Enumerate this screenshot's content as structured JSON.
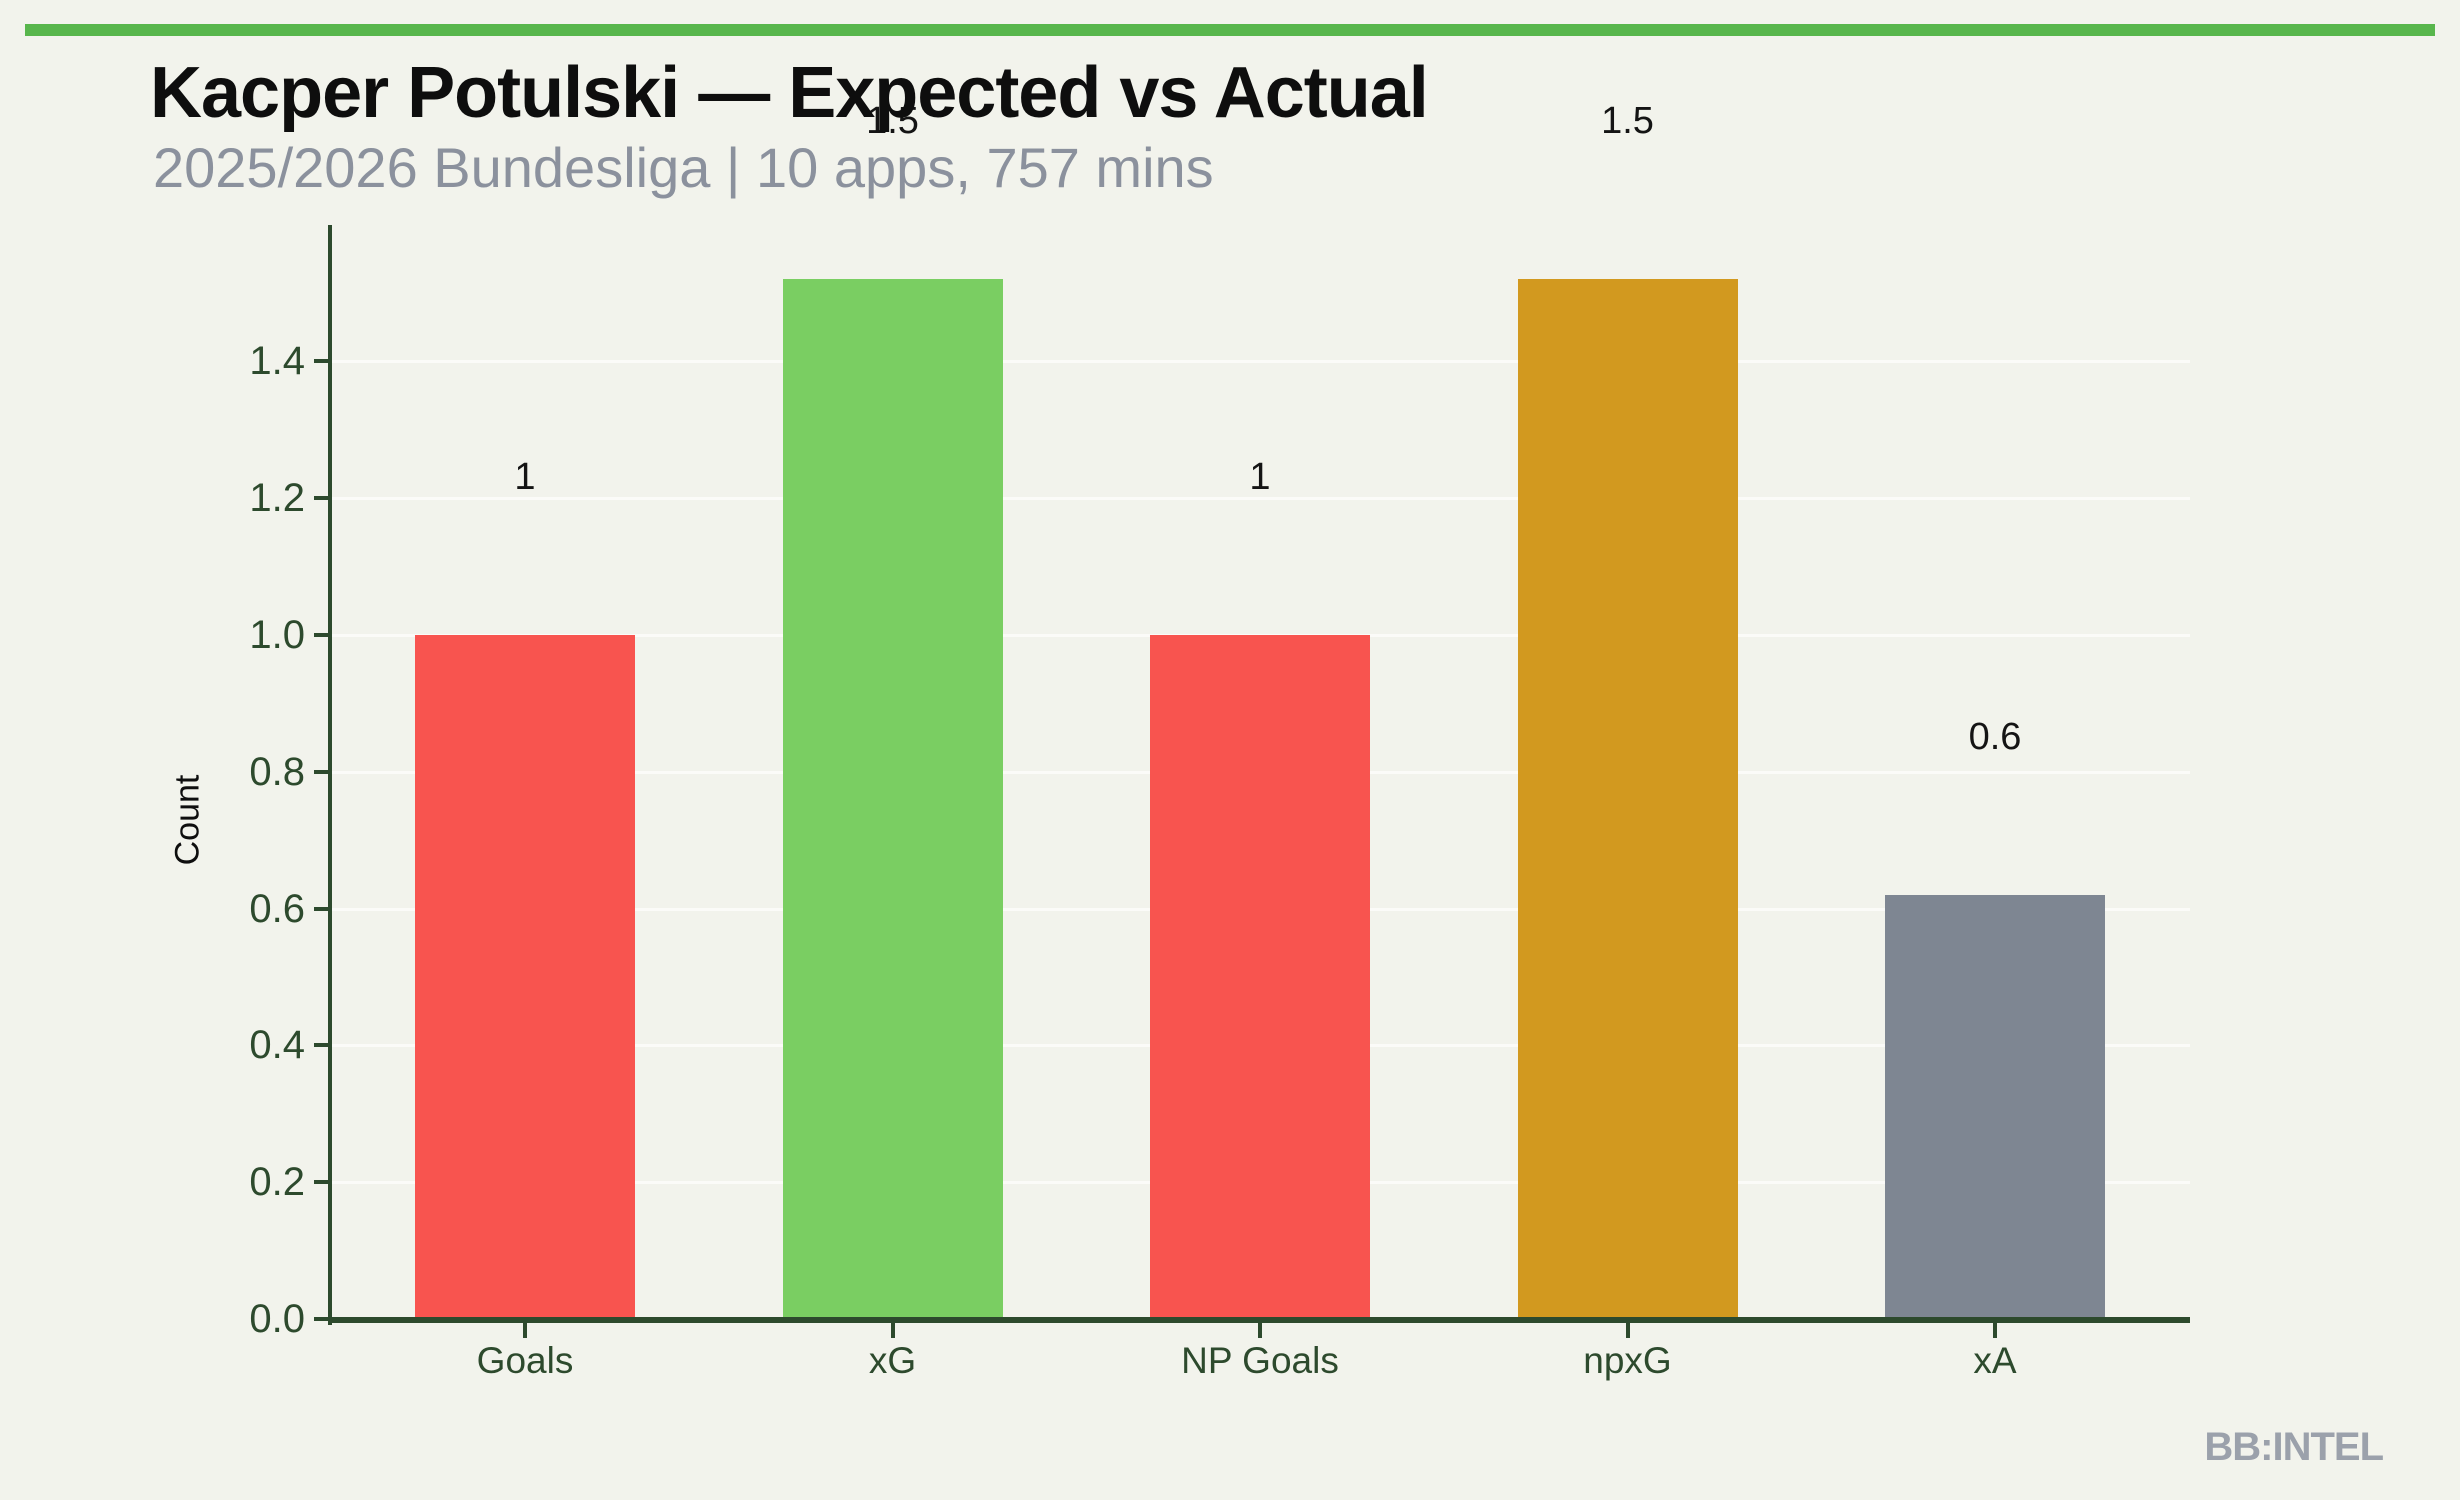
{
  "colors": {
    "background": "#f2f3ec",
    "accent": "#58b64c",
    "axis": "#2d4a2d",
    "title_text": "#0e0e0e",
    "subtitle_text": "#8b919d",
    "value_label_text": "#141414",
    "brand_text": "#9ba1ab",
    "gridline": "#ffffff",
    "bar_red": "#f8544f",
    "bar_green": "#7ace62",
    "bar_gold": "#d2991f",
    "bar_gray": "#7e8692"
  },
  "chart_data": {
    "type": "bar",
    "title": "Kacper Potulski — Expected vs Actual",
    "subtitle": "2025/2026 Bundesliga | 10 apps, 757 mins",
    "ylabel": "Count",
    "xlabel": "",
    "categories": [
      "Goals",
      "xG",
      "NP Goals",
      "npxG",
      "xA"
    ],
    "values": [
      1.0,
      1.52,
      1.0,
      1.52,
      0.62
    ],
    "value_labels": [
      "1",
      "1.5",
      "1",
      "1.5",
      "0.6"
    ],
    "bar_colors": [
      "#f8544f",
      "#7ace62",
      "#f8544f",
      "#d2991f",
      "#7e8692"
    ],
    "yticks": [
      0.0,
      0.2,
      0.4,
      0.6,
      0.8,
      1.0,
      1.2,
      1.4
    ],
    "ytick_labels": [
      "0.0",
      "0.2",
      "0.4",
      "0.6",
      "0.8",
      "1.0",
      "1.2",
      "1.4"
    ],
    "ylim": [
      0,
      1.59
    ],
    "grid": "horizontal",
    "legend": false
  },
  "footer": {
    "brand": "BB:INTEL"
  }
}
